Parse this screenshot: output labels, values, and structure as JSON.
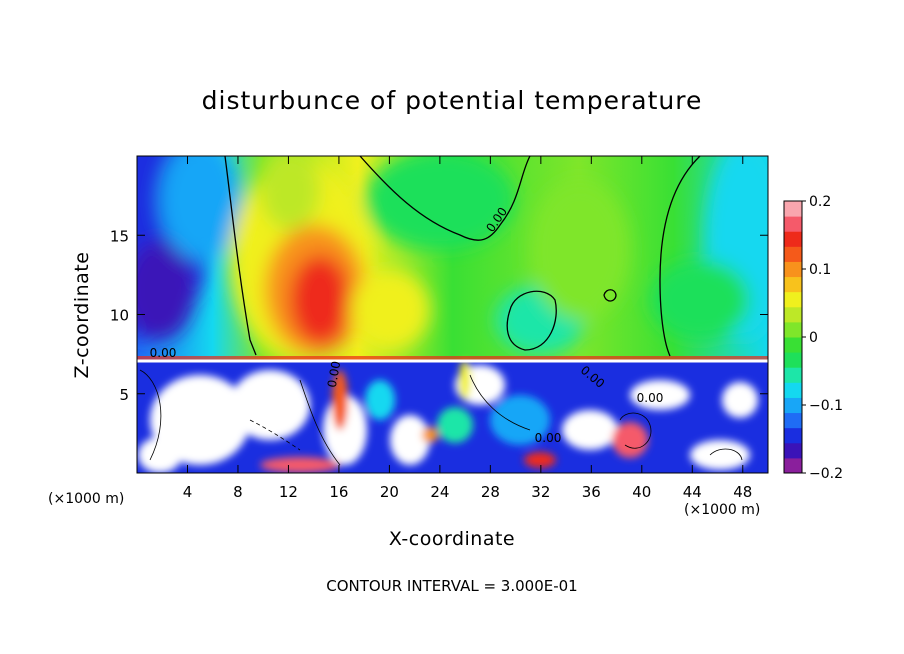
{
  "chart_data": {
    "type": "heatmap",
    "title": "disturbunce of potential temperature",
    "xlabel": "X-coordinate",
    "ylabel": "Z-coordinate",
    "x_unit_left": "(×1000 m)",
    "x_unit_right": "(×1000 m)",
    "footer": "CONTOUR INTERVAL = 3.000E-01",
    "xlim": [
      0,
      50
    ],
    "ylim": [
      0,
      20
    ],
    "x_ticks": [
      4,
      8,
      12,
      16,
      20,
      24,
      28,
      32,
      36,
      40,
      44,
      48
    ],
    "x_tick_labels": [
      "4",
      "8",
      "12",
      "16",
      "20",
      "24",
      "28",
      "32",
      "36",
      "40",
      "44",
      "48"
    ],
    "y_ticks": [
      5,
      10,
      15
    ],
    "y_tick_labels": [
      "5",
      "10",
      "15"
    ],
    "colorbar": {
      "min": -0.2,
      "max": 0.2,
      "ticks": [
        0.2,
        0.1,
        0,
        -0.1,
        -0.2
      ],
      "tick_labels": [
        "0.2",
        "0.1",
        "0",
        "−0.1",
        "−0.2"
      ],
      "colors": [
        "#8a1f9c",
        "#3a13b8",
        "#1a2ee0",
        "#1f6cf5",
        "#18a6f7",
        "#14d8f0",
        "#1de6a8",
        "#1ee05a",
        "#39e034",
        "#7fe62a",
        "#bde827",
        "#f0f01e",
        "#f8c21c",
        "#f8921c",
        "#f55a1a",
        "#ee2a1a",
        "#f55a6a",
        "#f9a6ae"
      ]
    },
    "contour_labels": [
      "0.00",
      "0.00",
      "0.00",
      "0.00",
      "0.00",
      "0.00"
    ],
    "fields": [
      {
        "name": "upper-left cold core",
        "x": 4,
        "y": 12.5,
        "value": -0.2
      },
      {
        "name": "upper warm core",
        "x": 15,
        "y": 11.5,
        "value": 0.15
      },
      {
        "name": "mid-upper cool region",
        "x": 32,
        "y": 10,
        "value": -0.03
      },
      {
        "name": "upper right neutral",
        "x": 40,
        "y": 15,
        "value": 0.05
      },
      {
        "name": "lower turbulent layer",
        "x": 25,
        "y": 3.5,
        "value": -0.1
      }
    ]
  }
}
